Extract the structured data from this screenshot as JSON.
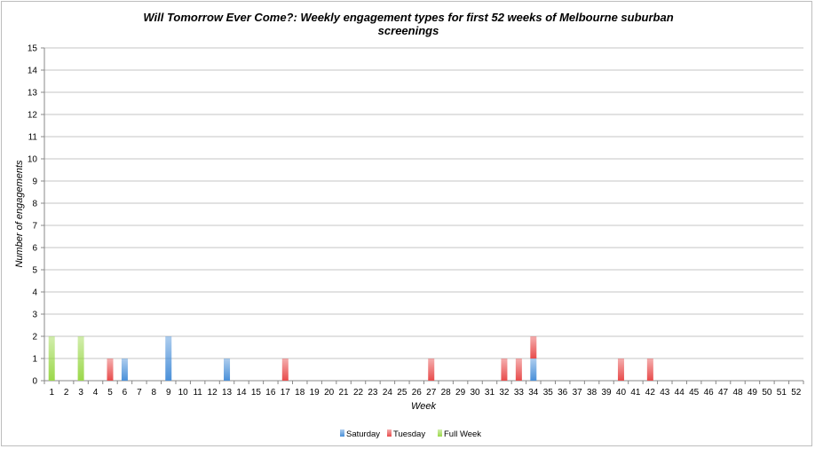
{
  "chart_data": {
    "type": "bar",
    "stacked": true,
    "title_line1": "Will Tomorrow Ever Come?: Weekly engagement types for first 52 weeks of Melbourne suburban",
    "title_line2": "screenings",
    "xlabel": "Week",
    "ylabel": "Number of engagements",
    "ylim": [
      0,
      15
    ],
    "grid": true,
    "legend_position": "bottom",
    "categories": [
      1,
      2,
      3,
      4,
      5,
      6,
      7,
      8,
      9,
      10,
      11,
      12,
      13,
      14,
      15,
      16,
      17,
      18,
      19,
      20,
      21,
      22,
      23,
      24,
      25,
      26,
      27,
      28,
      29,
      30,
      31,
      32,
      33,
      34,
      35,
      36,
      37,
      38,
      39,
      40,
      41,
      42,
      43,
      44,
      45,
      46,
      47,
      48,
      49,
      50,
      51,
      52
    ],
    "series": [
      {
        "name": "Saturday",
        "color": "#4a90d9",
        "values": [
          0,
          0,
          0,
          0,
          0,
          1,
          0,
          0,
          2,
          0,
          0,
          0,
          1,
          0,
          0,
          0,
          0,
          0,
          0,
          0,
          0,
          0,
          0,
          0,
          0,
          0,
          0,
          0,
          0,
          0,
          0,
          0,
          0,
          1,
          0,
          0,
          0,
          0,
          0,
          0,
          0,
          0,
          0,
          0,
          0,
          0,
          0,
          0,
          0,
          0,
          0,
          0
        ]
      },
      {
        "name": "Tuesday",
        "color": "#e84c4c",
        "values": [
          0,
          0,
          0,
          0,
          1,
          0,
          0,
          0,
          0,
          0,
          0,
          0,
          0,
          0,
          0,
          0,
          1,
          0,
          0,
          0,
          0,
          0,
          0,
          0,
          0,
          0,
          1,
          0,
          0,
          0,
          0,
          1,
          1,
          1,
          0,
          0,
          0,
          0,
          0,
          1,
          0,
          1,
          0,
          0,
          0,
          0,
          0,
          0,
          0,
          0,
          0,
          0
        ]
      },
      {
        "name": "Full Week",
        "color": "#9bd84a",
        "values": [
          2,
          0,
          2,
          0,
          0,
          0,
          0,
          0,
          0,
          0,
          0,
          0,
          0,
          0,
          0,
          0,
          0,
          0,
          0,
          0,
          0,
          0,
          0,
          0,
          0,
          0,
          0,
          0,
          0,
          0,
          0,
          0,
          0,
          0,
          0,
          0,
          0,
          0,
          0,
          0,
          0,
          0,
          0,
          0,
          0,
          0,
          0,
          0,
          0,
          0,
          0,
          0
        ]
      }
    ]
  }
}
